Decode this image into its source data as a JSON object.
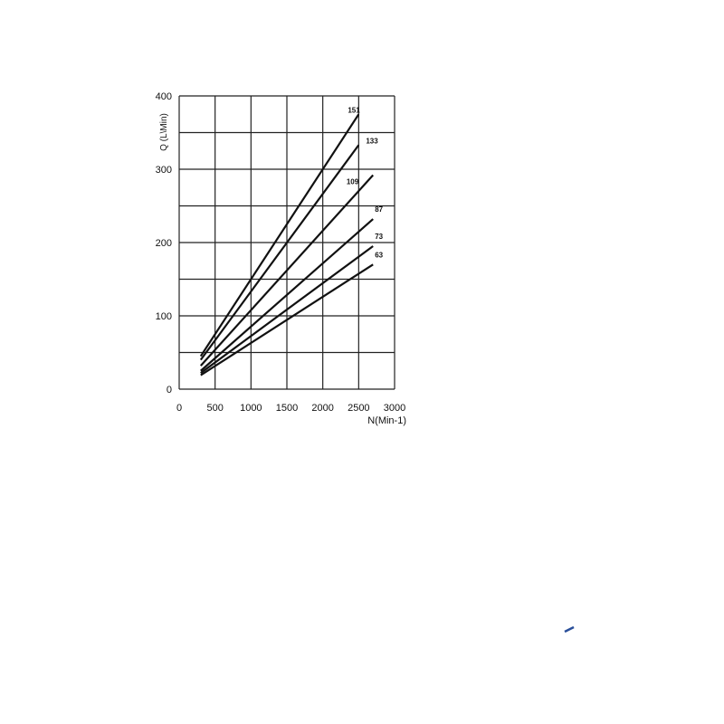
{
  "chart_data": {
    "type": "line",
    "title": "",
    "xlabel": "N(Min-1)",
    "ylabel": "Q (L\\Min)",
    "xlim": [
      0,
      3000
    ],
    "ylim": [
      0,
      400
    ],
    "xticks": [
      0,
      500,
      1000,
      1500,
      2000,
      2500,
      3000
    ],
    "yticks": [
      0,
      100,
      200,
      300,
      400
    ],
    "grid": true,
    "x_grid_step": 500,
    "y_grid_step": 50,
    "line_color": "#111111",
    "series": [
      {
        "name": "151",
        "x": [
          300,
          2500
        ],
        "y": [
          45,
          375
        ]
      },
      {
        "name": "133",
        "x": [
          300,
          2500
        ],
        "y": [
          40,
          333
        ]
      },
      {
        "name": "109",
        "x": [
          300,
          2700
        ],
        "y": [
          32,
          292
        ]
      },
      {
        "name": "87",
        "x": [
          300,
          2700
        ],
        "y": [
          25,
          232
        ]
      },
      {
        "name": "73",
        "x": [
          300,
          2700
        ],
        "y": [
          22,
          195
        ]
      },
      {
        "name": "63",
        "x": [
          300,
          2700
        ],
        "y": [
          19,
          170
        ]
      }
    ]
  }
}
